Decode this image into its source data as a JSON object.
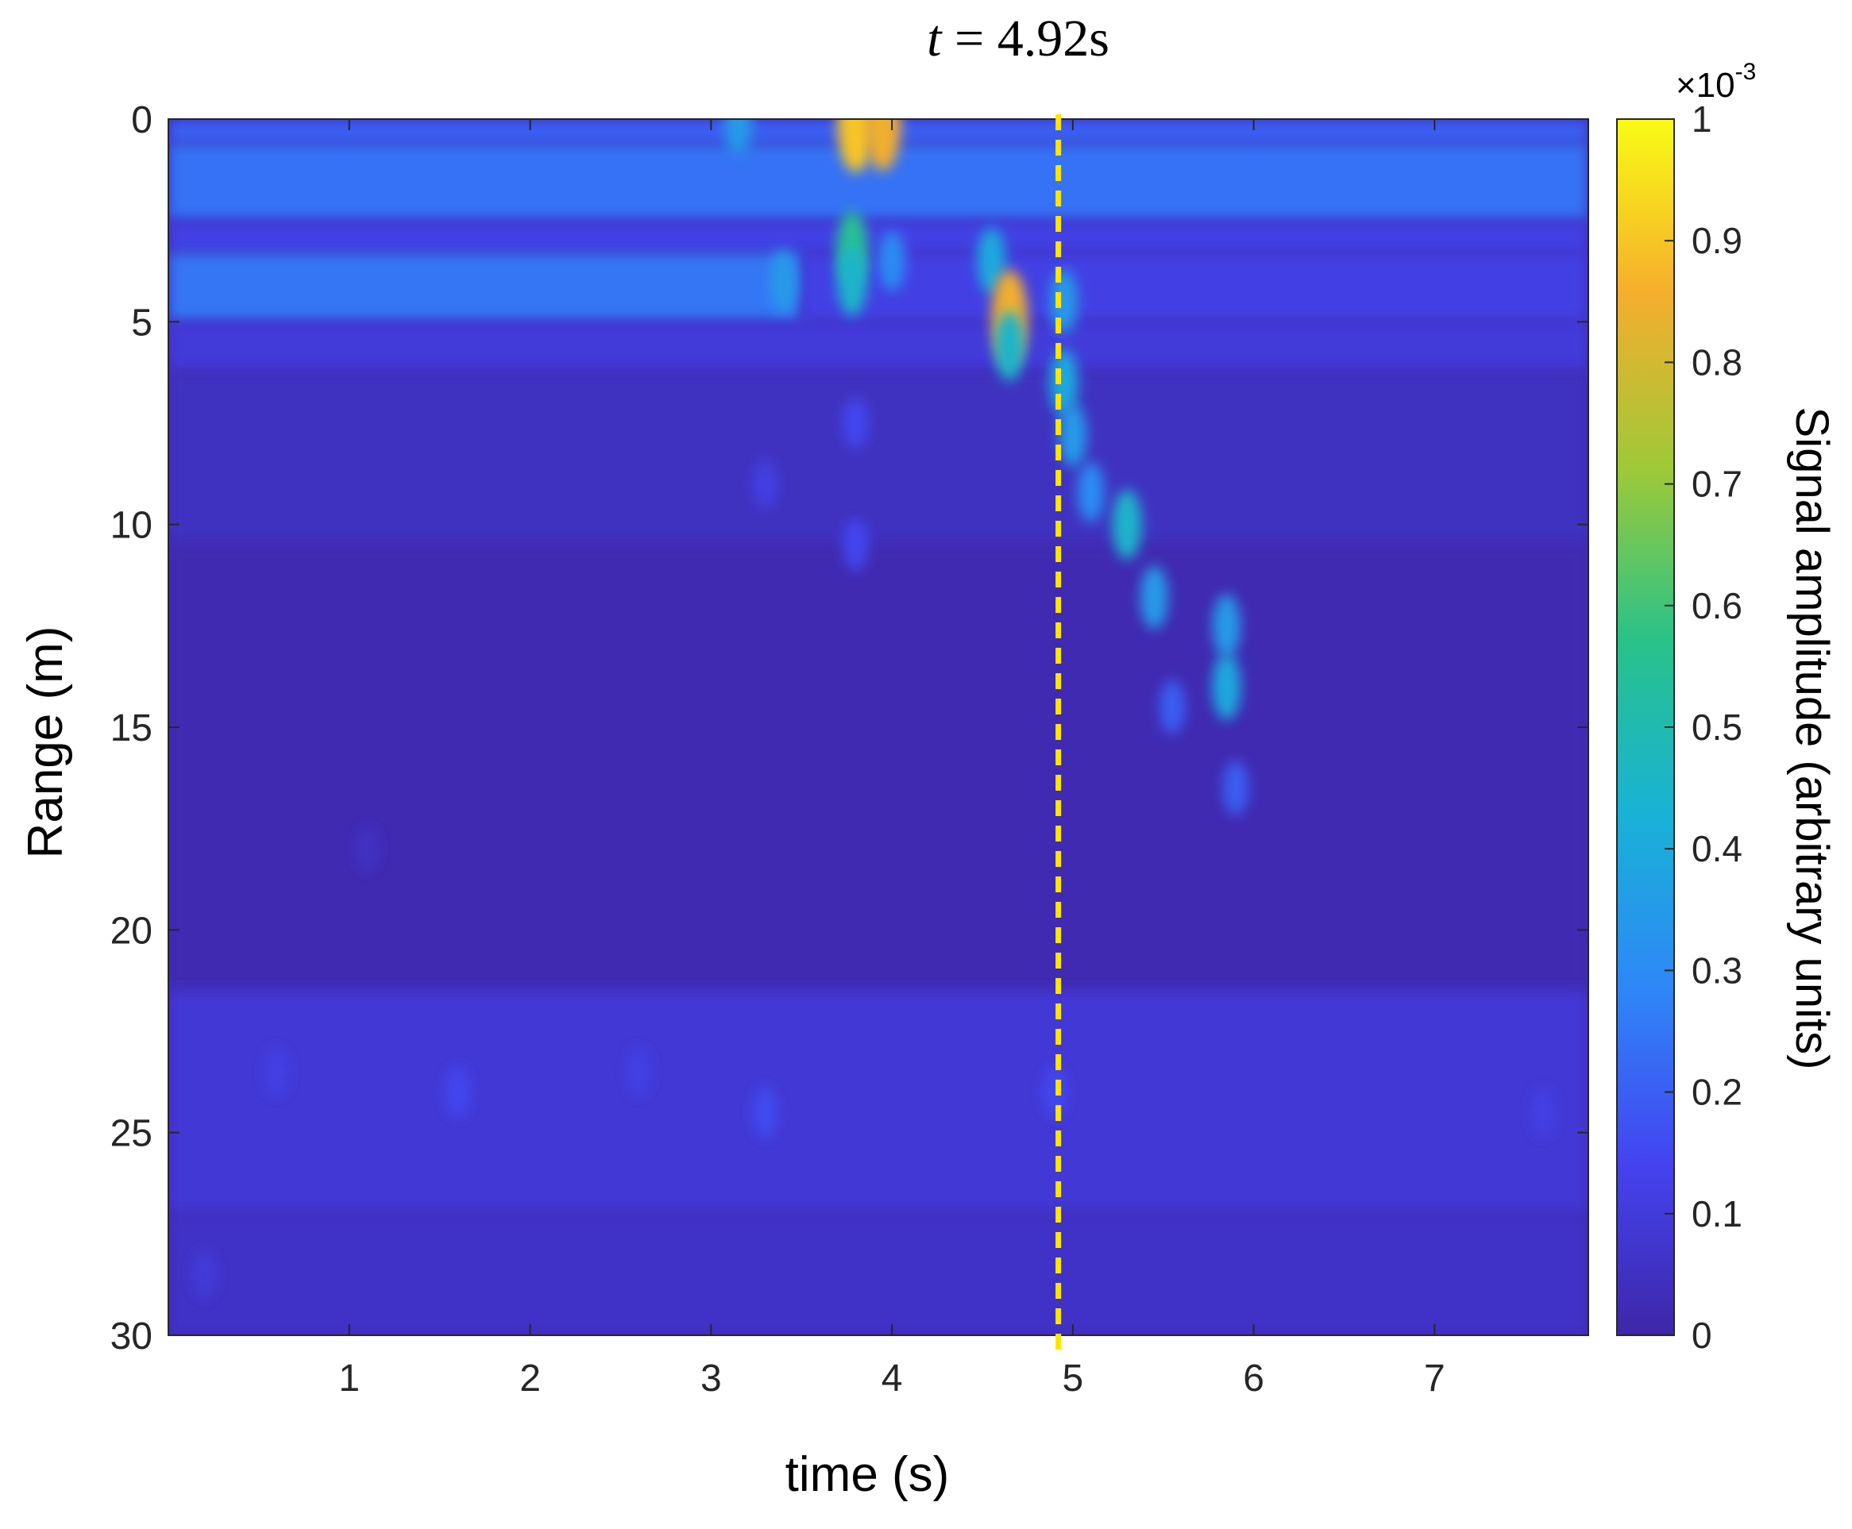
{
  "chart_data": {
    "type": "heatmap",
    "title_var": "t",
    "title_rest": " = 4.92s",
    "xlabel": "time (s)",
    "ylabel": "Range (m)",
    "colorbar_label": "Signal amplitude (arbitrary units)",
    "colorbar_multiplier": "×10",
    "colorbar_exponent": "-3",
    "xlim": [
      0,
      7.85
    ],
    "ylim": [
      0,
      30
    ],
    "y_reversed": true,
    "clim": [
      0,
      1
    ],
    "xticks": [
      1,
      2,
      3,
      4,
      5,
      6,
      7
    ],
    "xtick_labels": [
      "1",
      "2",
      "3",
      "4",
      "5",
      "6",
      "7"
    ],
    "yticks": [
      0,
      5,
      10,
      15,
      20,
      25,
      30
    ],
    "ytick_labels": [
      "0",
      "5",
      "10",
      "15",
      "20",
      "25",
      "30"
    ],
    "cticks": [
      0,
      0.1,
      0.2,
      0.3,
      0.4,
      0.5,
      0.6,
      0.7,
      0.8,
      0.9,
      1
    ],
    "ctick_labels": [
      "0",
      "0.1",
      "0.2",
      "0.3",
      "0.4",
      "0.5",
      "0.6",
      "0.7",
      "0.8",
      "0.9",
      "1"
    ],
    "marker_line": {
      "x": 4.92,
      "color": "#ffe600",
      "style": "dashed"
    },
    "colormap": "parula",
    "colormap_stops": [
      "#3e26a8",
      "#4444f0",
      "#2e87f7",
      "#19b2d6",
      "#29c289",
      "#9fc938",
      "#f5ae2d",
      "#f9fb15"
    ],
    "range_bands": [
      {
        "t_start": 0,
        "t_end": 7.85,
        "r_start": 0,
        "r_end": 0.6,
        "amplitude": 0.2
      },
      {
        "t_start": 0,
        "t_end": 7.85,
        "r_start": 0.6,
        "r_end": 2.5,
        "amplitude": 0.24
      },
      {
        "t_start": 0,
        "t_end": 7.85,
        "r_start": 2.5,
        "r_end": 3.3,
        "amplitude": 0.12
      },
      {
        "t_start": 0,
        "t_end": 3.5,
        "r_start": 3.3,
        "r_end": 5.0,
        "amplitude": 0.25
      },
      {
        "t_start": 3.5,
        "t_end": 7.85,
        "r_start": 3.3,
        "r_end": 5.0,
        "amplitude": 0.12
      },
      {
        "t_start": 0,
        "t_end": 7.85,
        "r_start": 5.0,
        "r_end": 6.2,
        "amplitude": 0.1
      },
      {
        "t_start": 0,
        "t_end": 7.85,
        "r_start": 6.2,
        "r_end": 10.5,
        "amplitude": 0.05
      },
      {
        "t_start": 0,
        "t_end": 7.85,
        "r_start": 10.5,
        "r_end": 21.5,
        "amplitude": 0.02
      },
      {
        "t_start": 0,
        "t_end": 7.85,
        "r_start": 21.5,
        "r_end": 27,
        "amplitude": 0.09
      },
      {
        "t_start": 0,
        "t_end": 7.85,
        "r_start": 27,
        "r_end": 30,
        "amplitude": 0.06
      }
    ],
    "hotspots": [
      {
        "t": 3.8,
        "r": 0.1,
        "amplitude": 0.9
      },
      {
        "t": 3.95,
        "r": 0.1,
        "amplitude": 0.85
      },
      {
        "t": 3.15,
        "r": 0.1,
        "amplitude": 0.35
      },
      {
        "t": 3.4,
        "r": 4.0,
        "amplitude": 0.35
      },
      {
        "t": 3.78,
        "r": 3.2,
        "amplitude": 0.55
      },
      {
        "t": 3.78,
        "r": 4.0,
        "amplitude": 0.45
      },
      {
        "t": 4.0,
        "r": 3.5,
        "amplitude": 0.3
      },
      {
        "t": 4.55,
        "r": 3.5,
        "amplitude": 0.4
      },
      {
        "t": 4.65,
        "r": 4.9,
        "amplitude": 0.85
      },
      {
        "t": 4.65,
        "r": 5.6,
        "amplitude": 0.45
      },
      {
        "t": 4.95,
        "r": 4.5,
        "amplitude": 0.35
      },
      {
        "t": 4.95,
        "r": 6.5,
        "amplitude": 0.4
      },
      {
        "t": 5.0,
        "r": 7.8,
        "amplitude": 0.35
      },
      {
        "t": 5.1,
        "r": 9.2,
        "amplitude": 0.3
      },
      {
        "t": 5.3,
        "r": 10.0,
        "amplitude": 0.45
      },
      {
        "t": 5.45,
        "r": 11.8,
        "amplitude": 0.35
      },
      {
        "t": 5.55,
        "r": 14.5,
        "amplitude": 0.2
      },
      {
        "t": 5.85,
        "r": 12.5,
        "amplitude": 0.35
      },
      {
        "t": 5.85,
        "r": 14.0,
        "amplitude": 0.4
      },
      {
        "t": 5.9,
        "r": 16.5,
        "amplitude": 0.2
      },
      {
        "t": 3.8,
        "r": 7.5,
        "amplitude": 0.15
      },
      {
        "t": 3.8,
        "r": 10.5,
        "amplitude": 0.15
      },
      {
        "t": 3.3,
        "r": 9.0,
        "amplitude": 0.12
      },
      {
        "t": 4.9,
        "r": 24.0,
        "amplitude": 0.15
      },
      {
        "t": 1.6,
        "r": 24.0,
        "amplitude": 0.15
      },
      {
        "t": 3.3,
        "r": 24.5,
        "amplitude": 0.16
      },
      {
        "t": 0.6,
        "r": 23.5,
        "amplitude": 0.12
      },
      {
        "t": 2.6,
        "r": 23.5,
        "amplitude": 0.12
      },
      {
        "t": 7.6,
        "r": 24.5,
        "amplitude": 0.12
      },
      {
        "t": 0.2,
        "r": 28.5,
        "amplitude": 0.1
      },
      {
        "t": 1.1,
        "r": 18.0,
        "amplitude": 0.06
      }
    ]
  }
}
